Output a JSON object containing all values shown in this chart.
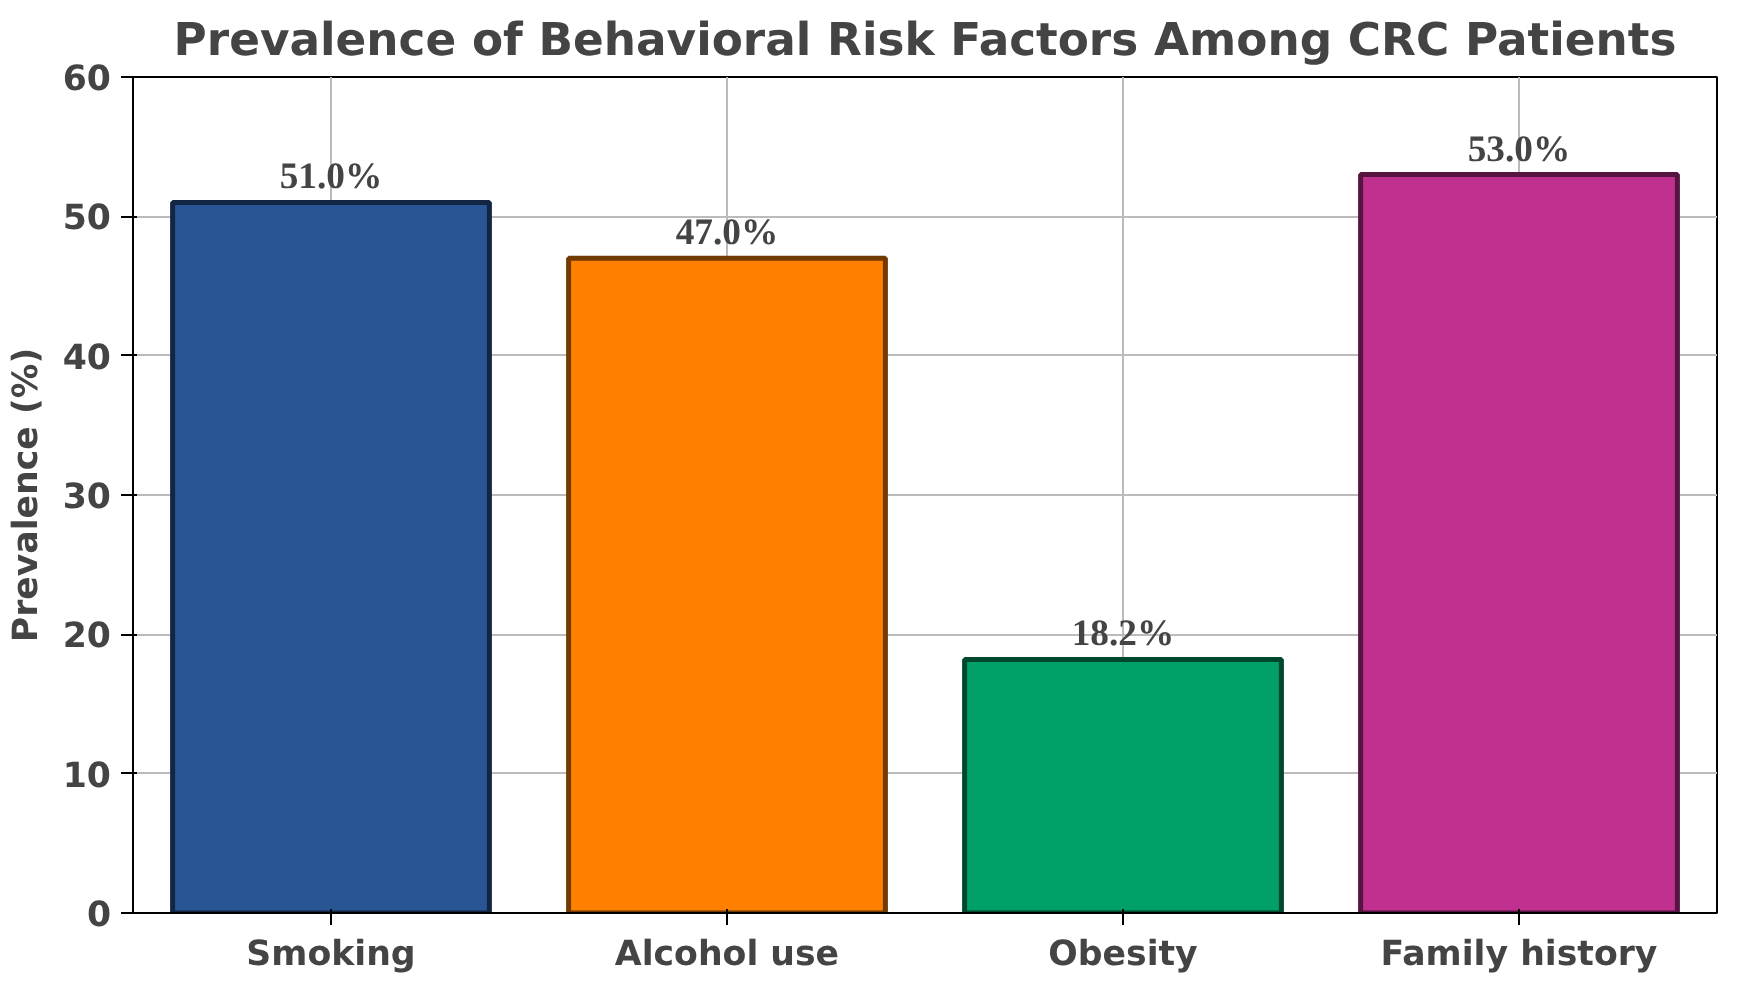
{
  "chart_data": {
    "type": "bar",
    "title": "Prevalence of Behavioral Risk Factors Among CRC Patients",
    "ylabel": "Prevalence (%)",
    "categories": [
      "Smoking",
      "Alcohol use",
      "Obesity",
      "Family history"
    ],
    "values": [
      51.0,
      47.0,
      18.2,
      53.0
    ],
    "value_labels": [
      "51.0%",
      "47.0%",
      "18.2%",
      "53.0%"
    ],
    "colors": [
      "#2a5595",
      "#ff8000",
      "#00a066",
      "#c0308f"
    ],
    "ylim": [
      0,
      60
    ],
    "yticks": [
      0,
      10,
      20,
      30,
      40,
      50,
      60
    ],
    "grid": true
  }
}
